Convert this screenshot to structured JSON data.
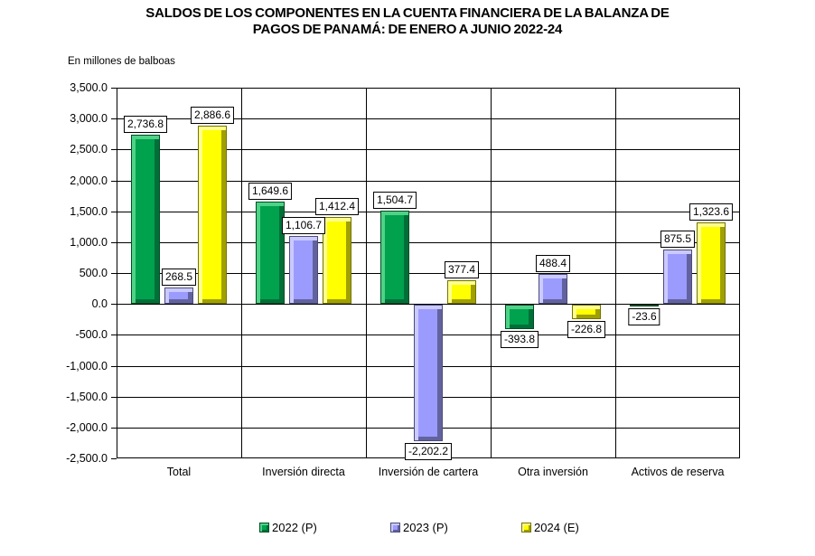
{
  "chart_data": {
    "type": "bar",
    "title": "SALDOS DE LOS COMPONENTES EN LA CUENTA FINANCIERA DE LA BALANZA DE PAGOS DE PANAMÁ: DE ENERO A JUNIO 2022-24",
    "title_lines": [
      "SALDOS DE LOS COMPONENTES EN LA CUENTA FINANCIERA DE LA BALANZA DE",
      "PAGOS DE PANAMÁ: DE ENERO A JUNIO 2022-24"
    ],
    "units_label": "En millones de balboas",
    "categories": [
      "Total",
      "Inversión directa",
      "Inversión de cartera",
      "Otra inversión",
      "Activos de reserva"
    ],
    "series": [
      {
        "name": "2022 (P)",
        "color": "green",
        "values": [
          2736.8,
          1649.6,
          1504.7,
          -393.8,
          -23.6
        ]
      },
      {
        "name": "2023 (P)",
        "color": "purple",
        "values": [
          268.5,
          1106.7,
          -2202.2,
          488.4,
          875.5
        ]
      },
      {
        "name": "2024 (E)",
        "color": "yellow",
        "values": [
          2886.6,
          1412.4,
          377.4,
          -226.8,
          1323.6
        ]
      }
    ],
    "xlabel": "",
    "ylabel": "",
    "ylim": [
      -2500,
      3500
    ],
    "ytick_step": 500,
    "grid": true,
    "legend_position": "bottom",
    "palette": {
      "green": {
        "fill": "#00A24E",
        "light": "#4FD287",
        "dark": "#007038",
        "edge": "#004D24"
      },
      "purple": {
        "fill": "#9B9BFE",
        "light": "#CACAFF",
        "dark": "#62629E",
        "edge": "#4C4C7A"
      },
      "yellow": {
        "fill": "#FFFF00",
        "light": "#FFFF8F",
        "dark": "#A0A000",
        "edge": "#737300"
      }
    },
    "gridline_color": "#000000",
    "label_box": {
      "bg": "#FFFFFF",
      "border": "#000000"
    }
  }
}
